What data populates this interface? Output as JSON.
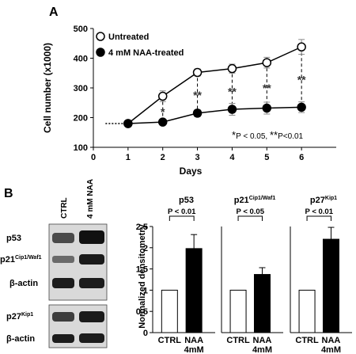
{
  "panels": {
    "a_label": "A",
    "b_label": "B"
  },
  "chart_data": [
    {
      "type": "line",
      "panel": "A",
      "x": [
        1,
        2,
        3,
        4,
        5,
        6
      ],
      "xlim": [
        0,
        7
      ],
      "xticks": [
        0,
        1,
        2,
        3,
        4,
        5,
        6
      ],
      "ylim": [
        100,
        500
      ],
      "yticks": [
        100,
        200,
        300,
        400,
        500
      ],
      "xlabel": "Days",
      "ylabel": "Cell number (x1000)",
      "legend_position": "top-left",
      "series": [
        {
          "name": "Untreated",
          "marker": "open-circle",
          "values": [
            180,
            272,
            352,
            365,
            385,
            438
          ],
          "errors": [
            0,
            18,
            12,
            15,
            18,
            25
          ]
        },
        {
          "name": "4 mM NAA-treated",
          "marker": "filled-circle",
          "values": [
            180,
            185,
            215,
            228,
            232,
            235
          ],
          "errors": [
            0,
            8,
            12,
            20,
            20,
            18
          ]
        }
      ],
      "baseline_label_dotted_until_x": 1,
      "significance_marks": [
        {
          "x": 2,
          "mark": "*"
        },
        {
          "x": 3,
          "mark": "**"
        },
        {
          "x": 4,
          "mark": "**"
        },
        {
          "x": 5,
          "mark": "**"
        },
        {
          "x": 6,
          "mark": "**"
        }
      ],
      "footnote": {
        "s1": "*",
        "t1": "P < 0.05, ",
        "s2": "**",
        "t2": "P<0.01"
      }
    },
    {
      "type": "bar",
      "panel": "B",
      "title": {
        "base": "p53",
        "sup": ""
      },
      "categories": [
        {
          "line1": "CTRL",
          "line2": ""
        },
        {
          "line1": "NAA",
          "line2": "4mM"
        }
      ],
      "values": [
        1.0,
        1.98
      ],
      "errors": [
        0,
        0.33
      ],
      "fills": [
        "#ffffff",
        "#000000"
      ],
      "ylim": [
        0,
        2.5
      ],
      "yticks": [
        0,
        0.5,
        1,
        1.5,
        2,
        2.5
      ],
      "ylabel": "Normalized densitometry",
      "pvalue": "P < 0.01"
    },
    {
      "type": "bar",
      "panel": "B",
      "title": {
        "base": "p21",
        "sup": "Cip1/Waf1"
      },
      "categories": [
        {
          "line1": "CTRL",
          "line2": ""
        },
        {
          "line1": "NAA",
          "line2": "4mM"
        }
      ],
      "values": [
        1.0,
        1.37
      ],
      "errors": [
        0,
        0.16
      ],
      "fills": [
        "#ffffff",
        "#000000"
      ],
      "ylim": [
        0,
        2.5
      ],
      "pvalue": "P < 0.05"
    },
    {
      "type": "bar",
      "panel": "B",
      "title": {
        "base": "p27",
        "sup": "Kip1"
      },
      "categories": [
        {
          "line1": "CTRL",
          "line2": ""
        },
        {
          "line1": "NAA",
          "line2": "4mM"
        }
      ],
      "values": [
        1.0,
        2.2
      ],
      "errors": [
        0,
        0.28
      ],
      "fills": [
        "#ffffff",
        "#000000"
      ],
      "ylim": [
        0,
        2.5
      ],
      "pvalue": "P < 0.01"
    }
  ],
  "blot": {
    "lanes": [
      "CTRL",
      "4 mM NAA"
    ],
    "rows": [
      {
        "base": "p53",
        "sup": ""
      },
      {
        "base": "p21",
        "sup": "Cip1/Waf1"
      },
      {
        "base": "β-actin",
        "sup": ""
      },
      {
        "base": "p27",
        "sup": "Kip1"
      },
      {
        "base": "β-actin",
        "sup": ""
      }
    ]
  },
  "colors": {
    "ink": "#000000",
    "bar_open": "#ffffff",
    "bar_filled": "#000000",
    "blot_bg": "#d8d8d8"
  }
}
